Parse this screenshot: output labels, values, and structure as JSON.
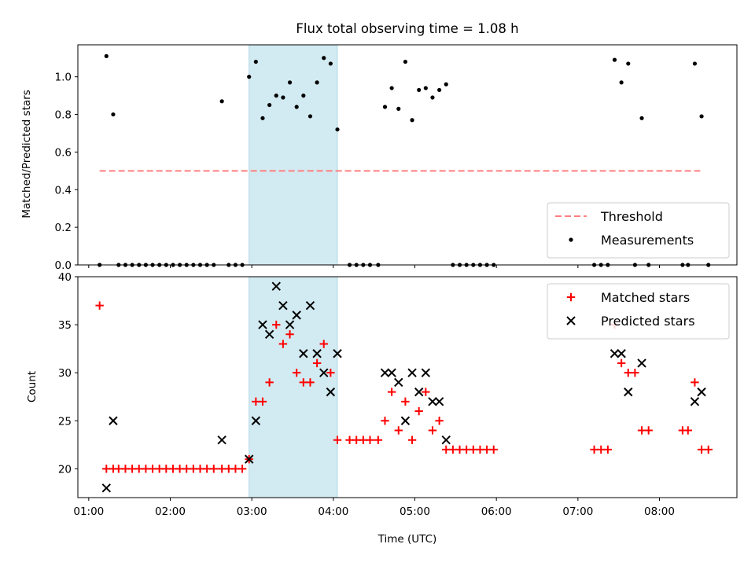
{
  "figure": {
    "title": "Flux total observing time = 1.08 h",
    "xlabel": "Time (UTC)"
  },
  "chart_data": [
    {
      "type": "scatter",
      "ylabel": "Matched/Predicted stars",
      "xlim": [
        "00:52",
        "08:57"
      ],
      "ylim": [
        0,
        1.17
      ],
      "yticks": [
        "0.0",
        "0.2",
        "0.4",
        "0.6",
        "0.8",
        "1.0"
      ],
      "ytick_values": [
        0,
        0.2,
        0.4,
        0.6,
        0.8,
        1.0
      ],
      "x_tick_labels_shown": false,
      "highlight_span": [
        "02:58",
        "04:03"
      ],
      "highlight_color": "#add8e6",
      "legend_position": "lower-right",
      "threshold": {
        "name": "Threshold",
        "value": 0.5,
        "x": [
          "01:08",
          "08:30"
        ],
        "color": "#ff7f7f",
        "style": "dashed"
      },
      "series": [
        {
          "name": "Measurements",
          "color": "#000000",
          "marker": "dot",
          "points": [
            [
              "01:08",
              0
            ],
            [
              "01:13",
              1.11
            ],
            [
              "01:18",
              0.8
            ],
            [
              "01:22",
              0
            ],
            [
              "01:27",
              0
            ],
            [
              "01:32",
              0
            ],
            [
              "01:37",
              0
            ],
            [
              "01:42",
              0
            ],
            [
              "01:47",
              0
            ],
            [
              "01:52",
              0
            ],
            [
              "01:57",
              0
            ],
            [
              "02:02",
              0
            ],
            [
              "02:07",
              0
            ],
            [
              "02:12",
              0
            ],
            [
              "02:17",
              0
            ],
            [
              "02:22",
              0
            ],
            [
              "02:27",
              0
            ],
            [
              "02:32",
              0
            ],
            [
              "02:38",
              0.87
            ],
            [
              "02:43",
              0
            ],
            [
              "02:48",
              0
            ],
            [
              "02:53",
              0
            ],
            [
              "02:58",
              1.0
            ],
            [
              "03:03",
              1.08
            ],
            [
              "03:08",
              0.78
            ],
            [
              "03:13",
              0.85
            ],
            [
              "03:18",
              0.9
            ],
            [
              "03:23",
              0.89
            ],
            [
              "03:28",
              0.97
            ],
            [
              "03:33",
              0.84
            ],
            [
              "03:38",
              0.9
            ],
            [
              "03:43",
              0.79
            ],
            [
              "03:48",
              0.97
            ],
            [
              "03:53",
              1.1
            ],
            [
              "03:58",
              1.07
            ],
            [
              "04:03",
              0.72
            ],
            [
              "04:12",
              0
            ],
            [
              "04:17",
              0
            ],
            [
              "04:22",
              0
            ],
            [
              "04:27",
              0
            ],
            [
              "04:33",
              0
            ],
            [
              "04:38",
              0.84
            ],
            [
              "04:43",
              0.94
            ],
            [
              "04:48",
              0.83
            ],
            [
              "04:53",
              1.08
            ],
            [
              "04:58",
              0.77
            ],
            [
              "05:03",
              0.93
            ],
            [
              "05:08",
              0.94
            ],
            [
              "05:13",
              0.89
            ],
            [
              "05:18",
              0.93
            ],
            [
              "05:23",
              0.96
            ],
            [
              "05:28",
              0
            ],
            [
              "05:33",
              0
            ],
            [
              "05:38",
              0
            ],
            [
              "05:43",
              0
            ],
            [
              "05:48",
              0
            ],
            [
              "05:53",
              0
            ],
            [
              "05:58",
              0
            ],
            [
              "07:12",
              0
            ],
            [
              "07:17",
              0
            ],
            [
              "07:22",
              0
            ],
            [
              "07:27",
              1.09
            ],
            [
              "07:32",
              0.97
            ],
            [
              "07:37",
              1.07
            ],
            [
              "07:42",
              0
            ],
            [
              "07:47",
              0.78
            ],
            [
              "07:52",
              0
            ],
            [
              "08:17",
              0
            ],
            [
              "08:21",
              0
            ],
            [
              "08:26",
              1.07
            ],
            [
              "08:31",
              0.79
            ],
            [
              "08:36",
              0
            ]
          ]
        }
      ]
    },
    {
      "type": "scatter",
      "ylabel": "Count",
      "xlim": [
        "00:52",
        "08:57"
      ],
      "ylim": [
        17,
        40
      ],
      "yticks": [
        "20",
        "25",
        "30",
        "35",
        "40"
      ],
      "ytick_values": [
        20,
        25,
        30,
        35,
        40
      ],
      "xticks": [
        "01:00",
        "02:00",
        "03:00",
        "04:00",
        "05:00",
        "06:00",
        "07:00",
        "08:00"
      ],
      "highlight_span": [
        "02:58",
        "04:03"
      ],
      "highlight_color": "#add8e6",
      "legend_position": "upper-right",
      "series": [
        {
          "name": "Matched stars",
          "color": "#ff0000",
          "marker": "plus",
          "points": [
            [
              "01:08",
              37
            ],
            [
              "01:13",
              20
            ],
            [
              "01:18",
              20
            ],
            [
              "01:22",
              20
            ],
            [
              "01:27",
              20
            ],
            [
              "01:32",
              20
            ],
            [
              "01:37",
              20
            ],
            [
              "01:42",
              20
            ],
            [
              "01:47",
              20
            ],
            [
              "01:52",
              20
            ],
            [
              "01:57",
              20
            ],
            [
              "02:02",
              20
            ],
            [
              "02:07",
              20
            ],
            [
              "02:12",
              20
            ],
            [
              "02:17",
              20
            ],
            [
              "02:22",
              20
            ],
            [
              "02:27",
              20
            ],
            [
              "02:32",
              20
            ],
            [
              "02:38",
              20
            ],
            [
              "02:43",
              20
            ],
            [
              "02:48",
              20
            ],
            [
              "02:53",
              20
            ],
            [
              "02:58",
              21
            ],
            [
              "03:03",
              27
            ],
            [
              "03:08",
              27
            ],
            [
              "03:13",
              29
            ],
            [
              "03:18",
              35
            ],
            [
              "03:23",
              33
            ],
            [
              "03:28",
              34
            ],
            [
              "03:33",
              30
            ],
            [
              "03:38",
              29
            ],
            [
              "03:43",
              29
            ],
            [
              "03:48",
              31
            ],
            [
              "03:53",
              33
            ],
            [
              "03:58",
              30
            ],
            [
              "04:03",
              23
            ],
            [
              "04:12",
              23
            ],
            [
              "04:17",
              23
            ],
            [
              "04:22",
              23
            ],
            [
              "04:27",
              23
            ],
            [
              "04:33",
              23
            ],
            [
              "04:38",
              25
            ],
            [
              "04:43",
              28
            ],
            [
              "04:48",
              24
            ],
            [
              "04:53",
              27
            ],
            [
              "04:58",
              23
            ],
            [
              "05:03",
              26
            ],
            [
              "05:08",
              28
            ],
            [
              "05:13",
              24
            ],
            [
              "05:18",
              25
            ],
            [
              "05:23",
              22
            ],
            [
              "05:28",
              22
            ],
            [
              "05:33",
              22
            ],
            [
              "05:38",
              22
            ],
            [
              "05:43",
              22
            ],
            [
              "05:48",
              22
            ],
            [
              "05:53",
              22
            ],
            [
              "05:58",
              22
            ],
            [
              "07:12",
              22
            ],
            [
              "07:17",
              22
            ],
            [
              "07:22",
              22
            ],
            [
              "07:27",
              35
            ],
            [
              "07:32",
              31
            ],
            [
              "07:37",
              30
            ],
            [
              "07:42",
              30
            ],
            [
              "07:47",
              24
            ],
            [
              "07:52",
              24
            ],
            [
              "08:17",
              24
            ],
            [
              "08:21",
              24
            ],
            [
              "08:26",
              29
            ],
            [
              "08:31",
              22
            ],
            [
              "08:36",
              22
            ]
          ]
        },
        {
          "name": "Predicted stars",
          "color": "#000000",
          "marker": "x",
          "points": [
            [
              "01:13",
              18
            ],
            [
              "01:18",
              25
            ],
            [
              "02:38",
              23
            ],
            [
              "02:58",
              21
            ],
            [
              "03:03",
              25
            ],
            [
              "03:08",
              35
            ],
            [
              "03:13",
              34
            ],
            [
              "03:18",
              39
            ],
            [
              "03:23",
              37
            ],
            [
              "03:28",
              35
            ],
            [
              "03:33",
              36
            ],
            [
              "03:38",
              32
            ],
            [
              "03:43",
              37
            ],
            [
              "03:48",
              32
            ],
            [
              "03:53",
              30
            ],
            [
              "03:58",
              28
            ],
            [
              "04:03",
              32
            ],
            [
              "04:38",
              30
            ],
            [
              "04:43",
              30
            ],
            [
              "04:48",
              29
            ],
            [
              "04:53",
              25
            ],
            [
              "04:58",
              30
            ],
            [
              "05:03",
              28
            ],
            [
              "05:08",
              30
            ],
            [
              "05:13",
              27
            ],
            [
              "05:18",
              27
            ],
            [
              "05:23",
              23
            ],
            [
              "07:27",
              32
            ],
            [
              "07:32",
              32
            ],
            [
              "07:37",
              28
            ],
            [
              "07:47",
              31
            ],
            [
              "08:26",
              27
            ],
            [
              "08:31",
              28
            ]
          ]
        }
      ]
    }
  ]
}
